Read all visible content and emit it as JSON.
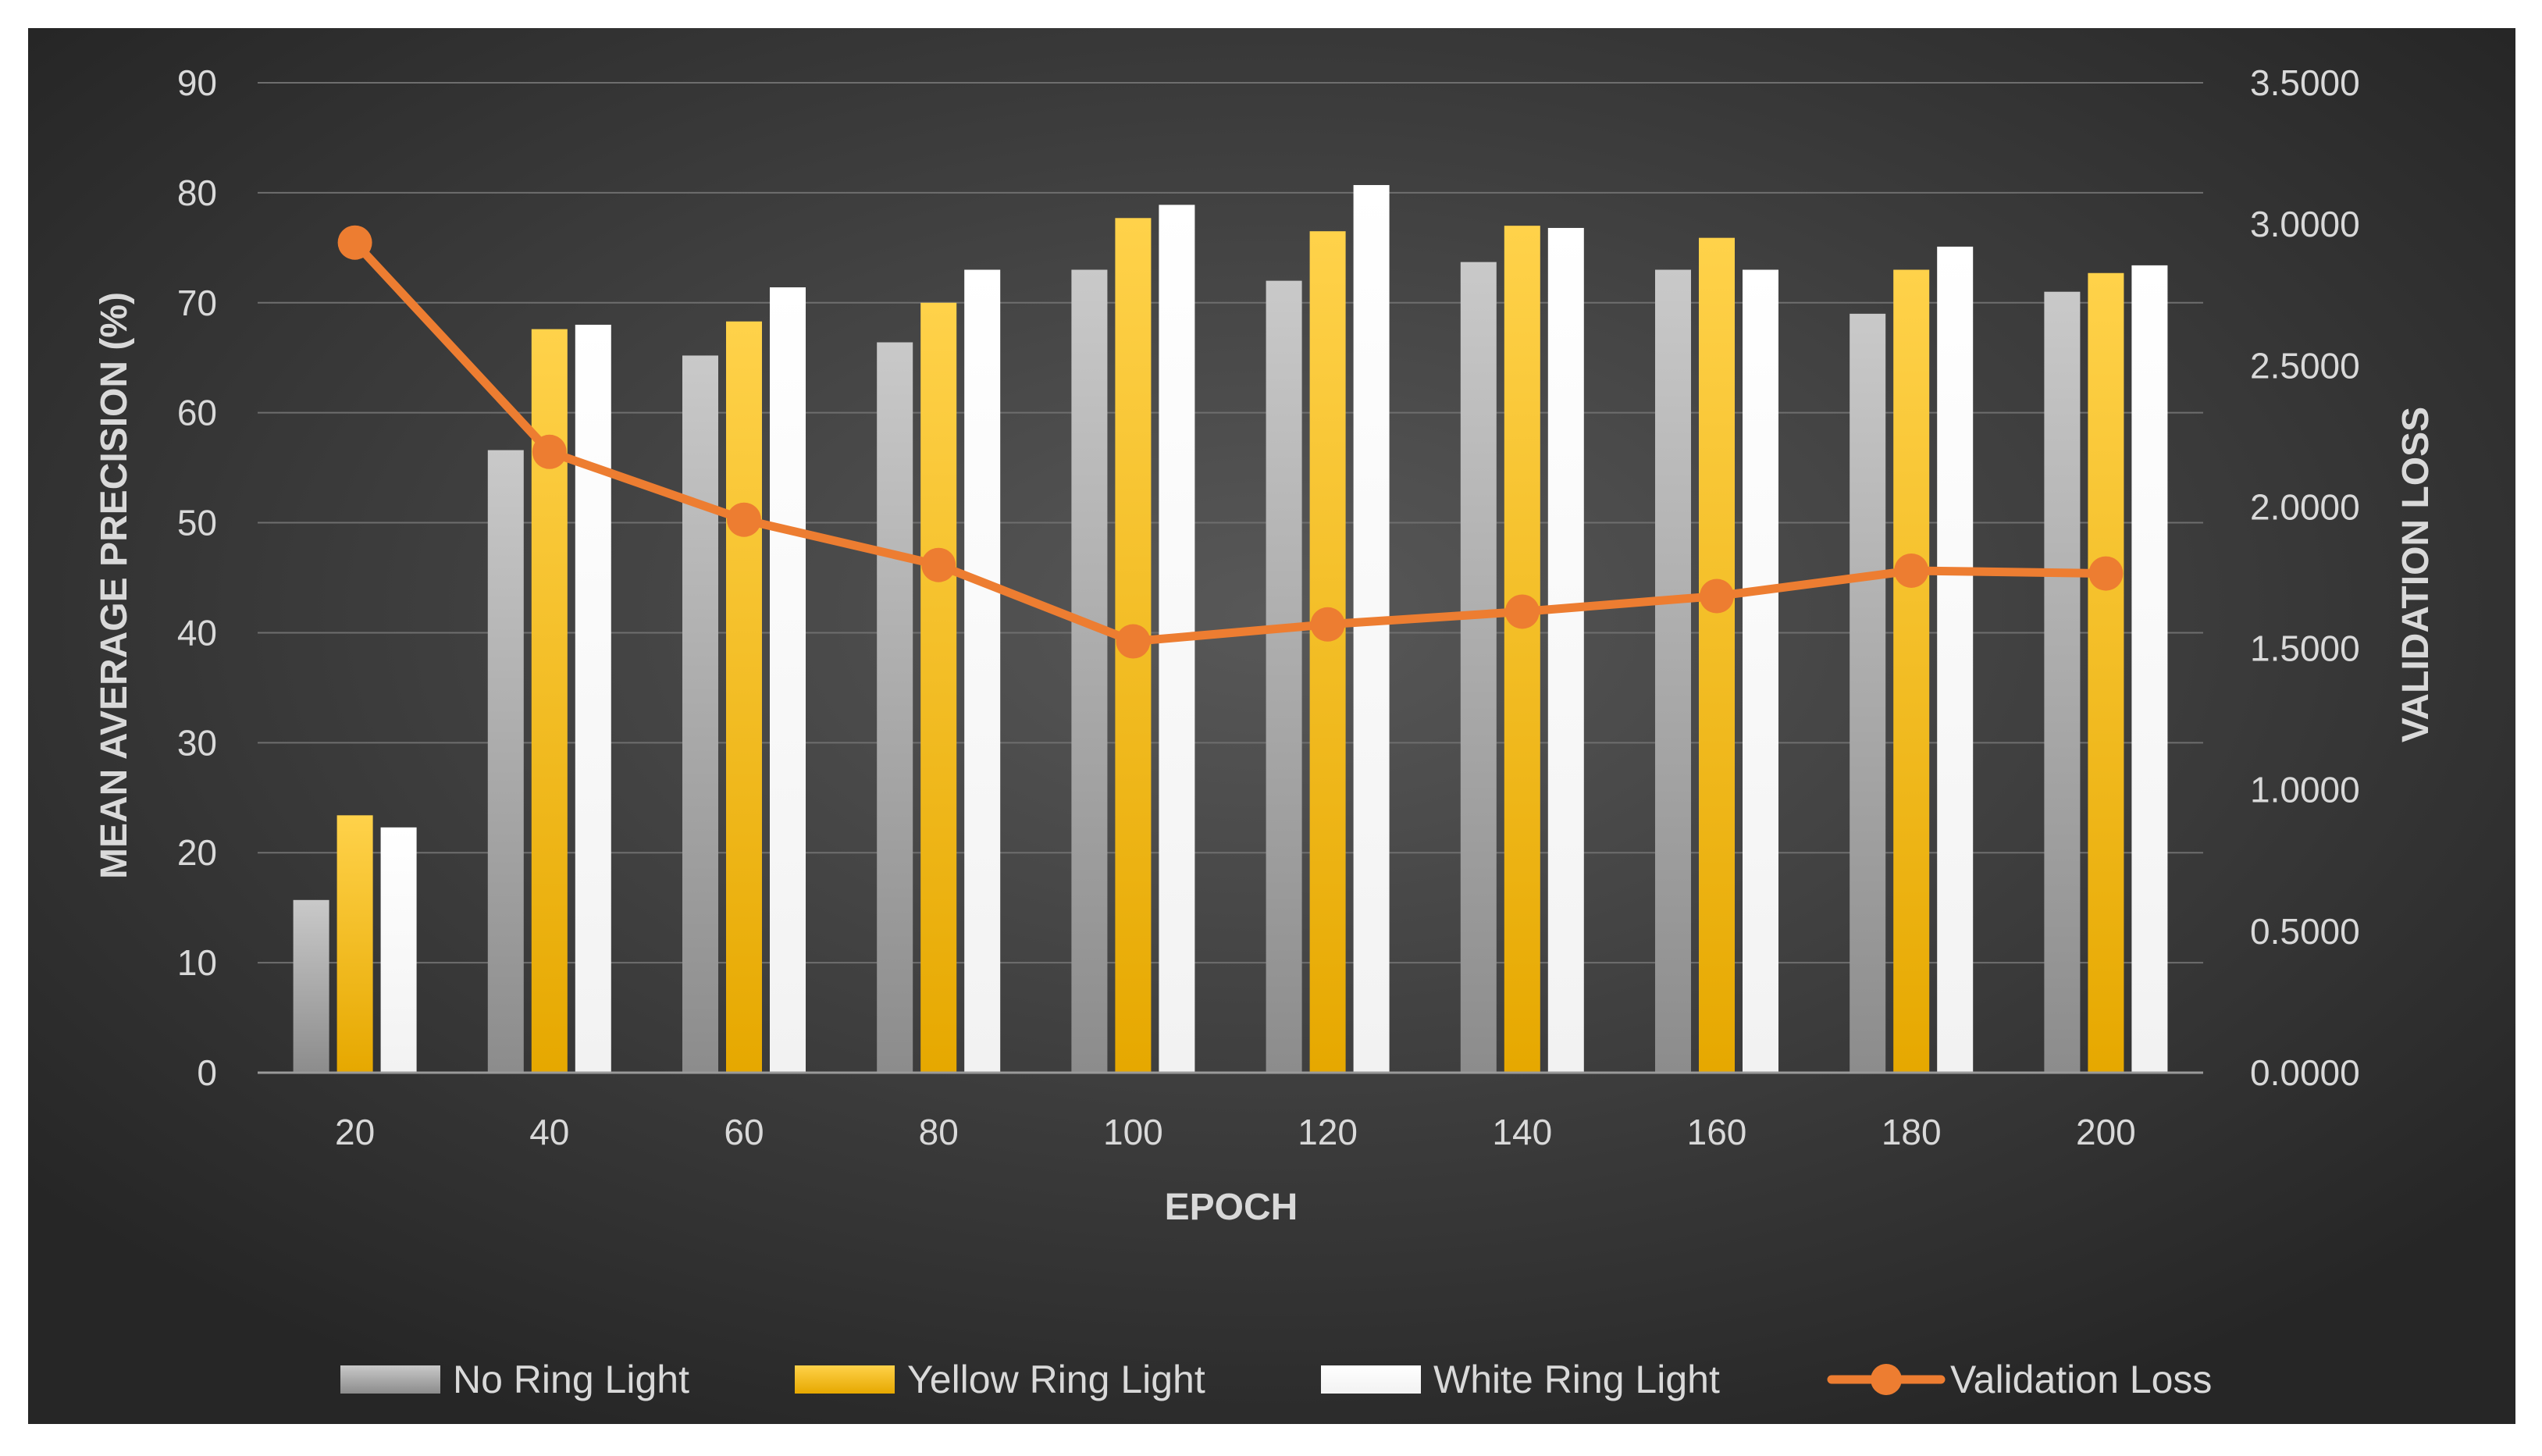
{
  "chart_data": {
    "type": "bar",
    "categories": [
      "20",
      "40",
      "60",
      "80",
      "100",
      "120",
      "140",
      "160",
      "180",
      "200"
    ],
    "xlabel": "EPOCH",
    "ylabel": "MEAN AVERAGE PRECISION (%)",
    "y2label": "VALIDATION LOSS",
    "ylim": [
      0,
      90
    ],
    "y2lim": [
      0,
      3.5
    ],
    "yticks": [
      "0",
      "10",
      "20",
      "30",
      "40",
      "50",
      "60",
      "70",
      "80",
      "90"
    ],
    "y2ticks": [
      "0.0000",
      "0.5000",
      "1.0000",
      "1.5000",
      "2.0000",
      "2.5000",
      "3.0000",
      "3.5000"
    ],
    "grid": true,
    "legend_position": "bottom",
    "series": [
      {
        "name": "No Ring Light",
        "type": "bar",
        "axis": "left",
        "color": "#a8a8a8",
        "values": [
          15.7,
          56.6,
          65.2,
          66.4,
          73.0,
          72.0,
          73.7,
          73.0,
          69.0,
          71.0
        ]
      },
      {
        "name": "Yellow Ring Light",
        "type": "bar",
        "axis": "left",
        "color": "#ffc000",
        "values": [
          23.4,
          67.6,
          68.3,
          70.0,
          77.7,
          76.5,
          77.0,
          75.9,
          73.0,
          72.7
        ]
      },
      {
        "name": "White Ring Light",
        "type": "bar",
        "axis": "left",
        "color": "#ffffff",
        "values": [
          22.3,
          68.0,
          71.4,
          73.0,
          78.9,
          80.7,
          76.8,
          73.0,
          75.1,
          73.4
        ]
      },
      {
        "name": "Validation Loss",
        "type": "line",
        "axis": "right",
        "color": "#ed7d31",
        "values": [
          2.935,
          2.195,
          1.955,
          1.795,
          1.525,
          1.585,
          1.63,
          1.685,
          1.775,
          1.765
        ]
      }
    ]
  }
}
